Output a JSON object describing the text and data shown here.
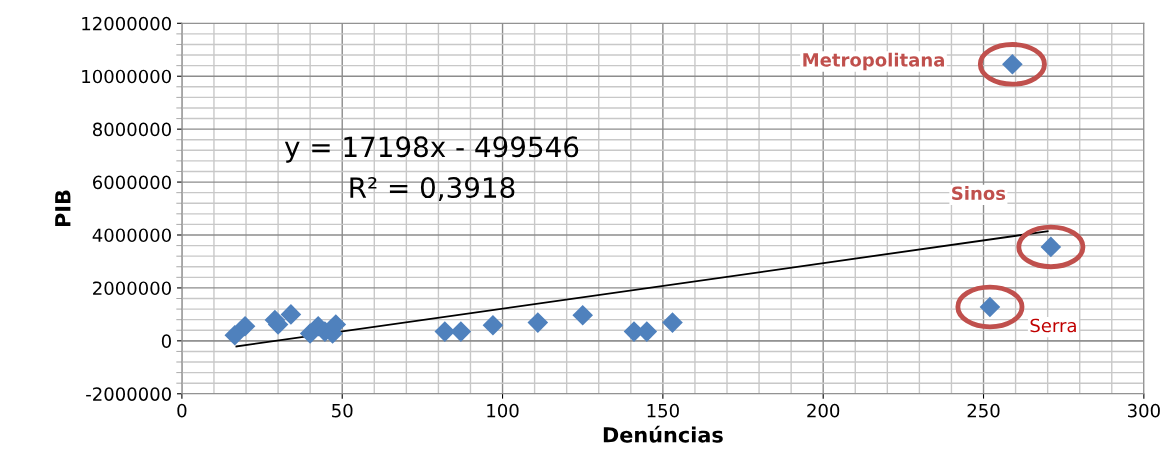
{
  "chart_data": {
    "type": "scatter",
    "xlabel": "Denúncias",
    "ylabel": "PIB",
    "xlim": [
      0,
      300
    ],
    "xticks": [
      0,
      50,
      100,
      150,
      200,
      250,
      300
    ],
    "ylim": [
      -2000000,
      12000000
    ],
    "yticks": [
      -2000000,
      0,
      2000000,
      4000000,
      6000000,
      8000000,
      10000000,
      12000000
    ],
    "grid": true,
    "legend": false,
    "marker": "diamond",
    "series": [
      {
        "color": "#4f81bd",
        "x": [
          16.5,
          19.7,
          29,
          30,
          34,
          40,
          42.5,
          44.6,
          47,
          48,
          82,
          87,
          97,
          111,
          125,
          141,
          145,
          153,
          259,
          271,
          252
        ],
        "values": [
          210000,
          550000,
          790000,
          620000,
          1000000,
          280000,
          550000,
          350000,
          280000,
          620000,
          350000,
          350000,
          590000,
          690000,
          970000,
          350000,
          350000,
          690000,
          10450000,
          3550000,
          1280000
        ]
      },
      {
        "type": "line",
        "color": "#000000",
        "marker": "none",
        "line_style": "solid",
        "x": [
          17,
          270
        ],
        "values": [
          -210000,
          4140000
        ]
      }
    ],
    "annotations": [
      "Metropolitana",
      "Sinos",
      "Serra",
      "y = 17198x - 499546",
      "R² = 0,3918"
    ]
  }
}
